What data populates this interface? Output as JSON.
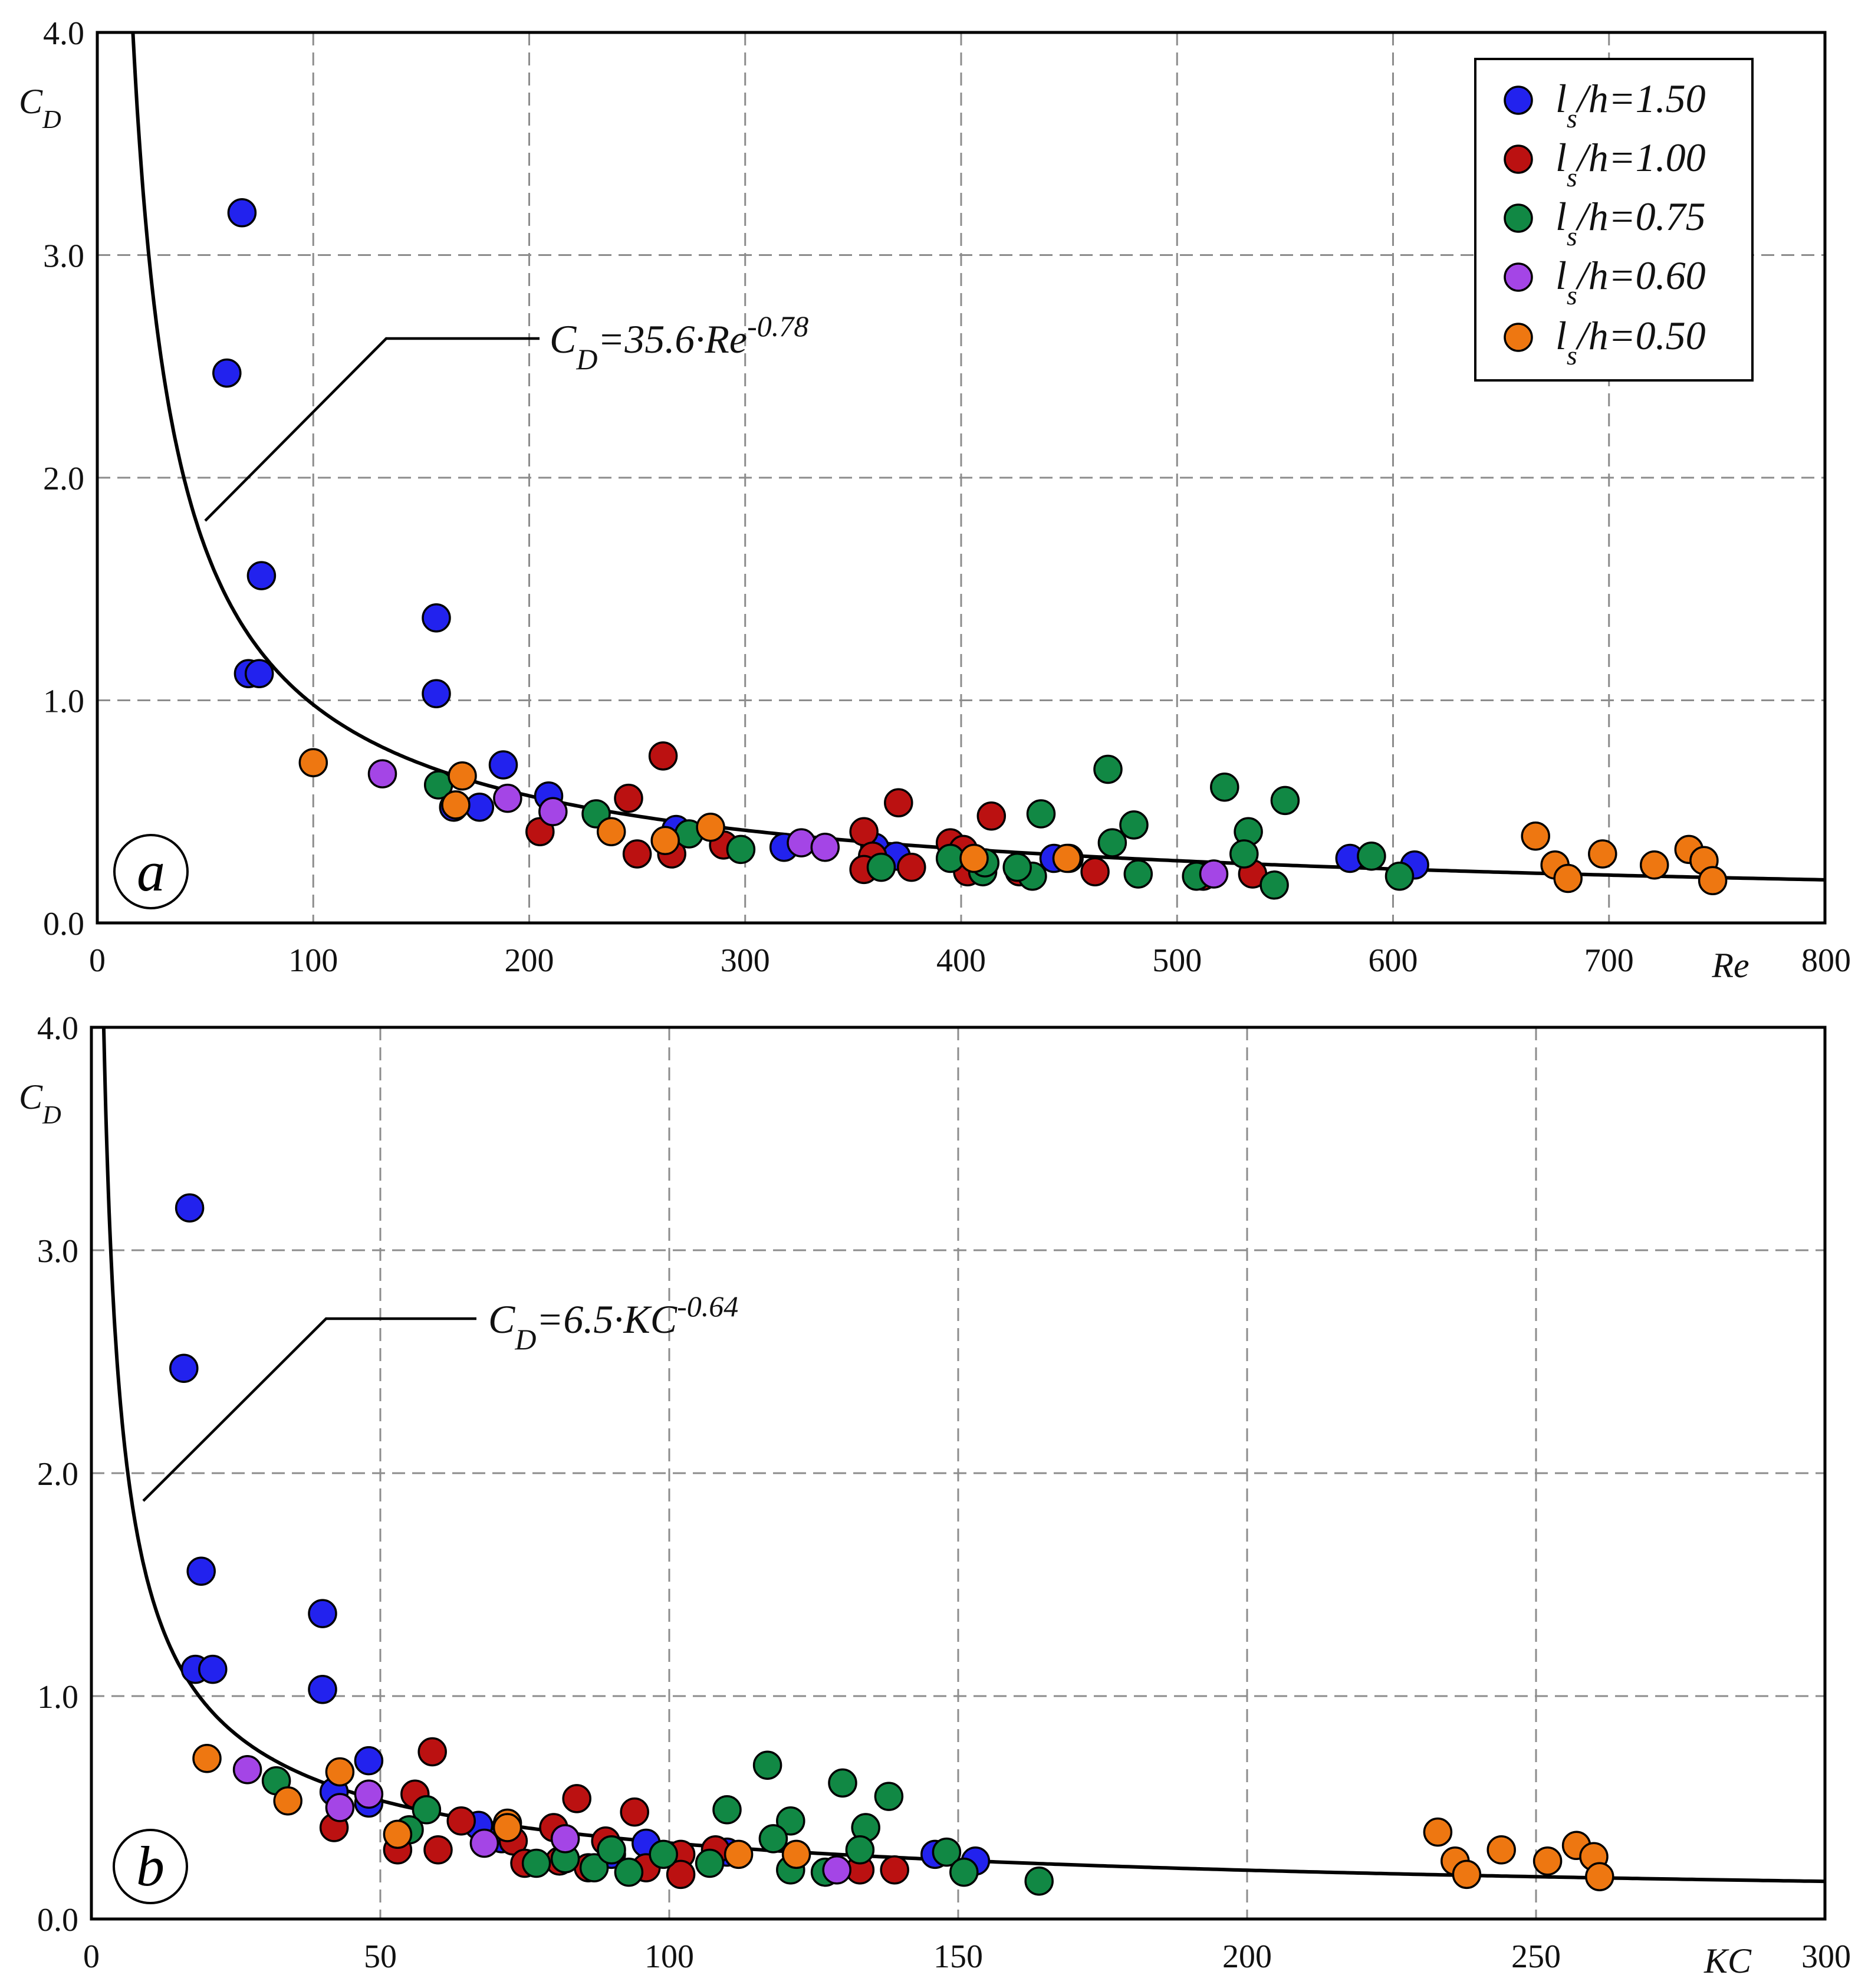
{
  "chart_data": [
    {
      "type": "scatter",
      "panel_label": "a",
      "xlabel": "Re",
      "ylabel": "C",
      "ylabel_sub": "D",
      "xlim": [
        0,
        800
      ],
      "ylim": [
        0,
        4
      ],
      "xticks": [
        "0",
        "100",
        "200",
        "300",
        "400",
        "500",
        "600",
        "700",
        "800"
      ],
      "yticks": [
        "0.0",
        "1.0",
        "2.0",
        "3.0",
        "4.0"
      ],
      "grid": true,
      "legend_position": "top-right",
      "fit": {
        "label_main": "C",
        "label_sub": "D",
        "label_rest": "=35.6·Re",
        "label_sup": "-0.78",
        "coef": 35.6,
        "exp": -0.78
      },
      "series": [
        {
          "name": "l/h=1.50",
          "leg_l": "l",
          "leg_s": "s",
          "leg_rest": "/h=1.50",
          "color": "#2222ee",
          "points": [
            [
              67,
              3.19
            ],
            [
              60,
              2.47
            ],
            [
              76,
              1.56
            ],
            [
              70,
              1.12
            ],
            [
              75,
              1.12
            ],
            [
              157,
              1.37
            ],
            [
              157,
              1.03
            ],
            [
              188,
              0.71
            ],
            [
              209,
              0.57
            ],
            [
              165,
              0.52
            ],
            [
              177,
              0.52
            ],
            [
              268,
              0.42
            ],
            [
              318,
              0.34
            ],
            [
              360,
              0.34
            ],
            [
              370,
              0.3
            ],
            [
              443,
              0.29
            ],
            [
              580,
              0.29
            ],
            [
              610,
              0.26
            ],
            [
              397,
              0.32
            ]
          ]
        },
        {
          "name": "l/h=1.00",
          "leg_l": "l",
          "leg_s": "s",
          "leg_rest": "/h=1.00",
          "color": "#bb1111",
          "points": [
            [
              262,
              0.75
            ],
            [
              371,
              0.54
            ],
            [
              414,
              0.48
            ],
            [
              246,
              0.56
            ],
            [
              205,
              0.41
            ],
            [
              355,
              0.41
            ],
            [
              250,
              0.31
            ],
            [
              266,
              0.31
            ],
            [
              290,
              0.35
            ],
            [
              359,
              0.3
            ],
            [
              395,
              0.36
            ],
            [
              401,
              0.33
            ],
            [
              403,
              0.23
            ],
            [
              355,
              0.24
            ],
            [
              377,
              0.25
            ],
            [
              427,
              0.23
            ],
            [
              462,
              0.23
            ],
            [
              512,
              0.21
            ],
            [
              535,
              0.22
            ],
            [
              450,
              0.29
            ]
          ]
        },
        {
          "name": "l/h=0.75",
          "leg_l": "l",
          "leg_s": "s",
          "leg_rest": "/h=0.75",
          "color": "#118844",
          "points": [
            [
              468,
              0.69
            ],
            [
              522,
              0.61
            ],
            [
              550,
              0.55
            ],
            [
              437,
              0.49
            ],
            [
              231,
              0.49
            ],
            [
              158,
              0.62
            ],
            [
              480,
              0.44
            ],
            [
              533,
              0.41
            ],
            [
              470,
              0.36
            ],
            [
              531,
              0.31
            ],
            [
              590,
              0.3
            ],
            [
              274,
              0.4
            ],
            [
              298,
              0.33
            ],
            [
              363,
              0.25
            ],
            [
              395,
              0.29
            ],
            [
              410,
              0.23
            ],
            [
              411,
              0.27
            ],
            [
              433,
              0.21
            ],
            [
              426,
              0.25
            ],
            [
              482,
              0.22
            ],
            [
              509,
              0.21
            ],
            [
              545,
              0.17
            ],
            [
              603,
              0.21
            ]
          ]
        },
        {
          "name": "l/h=0.60",
          "leg_l": "l",
          "leg_s": "s",
          "leg_rest": "/h=0.60",
          "color": "#a445e6",
          "points": [
            [
              132,
              0.67
            ],
            [
              190,
              0.56
            ],
            [
              211,
              0.5
            ],
            [
              326,
              0.36
            ],
            [
              337,
              0.34
            ],
            [
              517,
              0.22
            ]
          ]
        },
        {
          "name": "l/h=0.50",
          "leg_l": "l",
          "leg_s": "s",
          "leg_rest": "/h=0.50",
          "color": "#ee7711",
          "points": [
            [
              100,
              0.72
            ],
            [
              169,
              0.66
            ],
            [
              166,
              0.53
            ],
            [
              238,
              0.41
            ],
            [
              263,
              0.37
            ],
            [
              284,
              0.43
            ],
            [
              406,
              0.29
            ],
            [
              449,
              0.29
            ],
            [
              666,
              0.39
            ],
            [
              675,
              0.26
            ],
            [
              681,
              0.2
            ],
            [
              697,
              0.31
            ],
            [
              721,
              0.26
            ],
            [
              737,
              0.33
            ],
            [
              744,
              0.28
            ],
            [
              748,
              0.19
            ]
          ]
        }
      ]
    },
    {
      "type": "scatter",
      "panel_label": "b",
      "xlabel": "KC",
      "ylabel": "C",
      "ylabel_sub": "D",
      "xlim": [
        0,
        300
      ],
      "ylim": [
        0,
        4
      ],
      "xticks": [
        "0",
        "50",
        "100",
        "150",
        "200",
        "250",
        "300"
      ],
      "yticks": [
        "0.0",
        "1.0",
        "2.0",
        "3.0",
        "4.0"
      ],
      "grid": true,
      "fit": {
        "label_main": "C",
        "label_sub": "D",
        "label_rest": "=6.5·KC",
        "label_sup": "-0.64",
        "coef": 6.5,
        "exp": -0.64
      },
      "series": [
        {
          "name": "l/h=1.50",
          "color": "#2222ee",
          "points": [
            [
              17,
              3.19
            ],
            [
              16,
              2.47
            ],
            [
              19,
              1.56
            ],
            [
              18,
              1.12
            ],
            [
              21,
              1.12
            ],
            [
              40,
              1.37
            ],
            [
              40,
              1.03
            ],
            [
              48,
              0.71
            ],
            [
              42,
              0.57
            ],
            [
              48,
              0.52
            ],
            [
              67,
              0.42
            ],
            [
              96,
              0.34
            ],
            [
              90,
              0.29
            ],
            [
              146,
              0.29
            ],
            [
              153,
              0.26
            ],
            [
              71,
              0.36
            ],
            [
              110,
              0.3
            ]
          ]
        },
        {
          "name": "l/h=1.00",
          "color": "#bb1111",
          "points": [
            [
              59,
              0.75
            ],
            [
              84,
              0.54
            ],
            [
              94,
              0.48
            ],
            [
              56,
              0.56
            ],
            [
              42,
              0.41
            ],
            [
              80,
              0.41
            ],
            [
              53,
              0.31
            ],
            [
              60,
              0.31
            ],
            [
              64,
              0.44
            ],
            [
              73,
              0.35
            ],
            [
              75,
              0.25
            ],
            [
              81,
              0.26
            ],
            [
              86,
              0.23
            ],
            [
              89,
              0.35
            ],
            [
              96,
              0.23
            ],
            [
              102,
              0.29
            ],
            [
              102,
              0.2
            ],
            [
              108,
              0.31
            ],
            [
              133,
              0.22
            ],
            [
              139,
              0.22
            ]
          ]
        },
        {
          "name": "l/h=0.75",
          "color": "#118844",
          "points": [
            [
              117,
              0.69
            ],
            [
              130,
              0.61
            ],
            [
              138,
              0.55
            ],
            [
              110,
              0.49
            ],
            [
              58,
              0.49
            ],
            [
              32,
              0.62
            ],
            [
              121,
              0.44
            ],
            [
              134,
              0.41
            ],
            [
              118,
              0.36
            ],
            [
              133,
              0.31
            ],
            [
              148,
              0.3
            ],
            [
              55,
              0.4
            ],
            [
              77,
              0.25
            ],
            [
              82,
              0.27
            ],
            [
              87,
              0.23
            ],
            [
              90,
              0.31
            ],
            [
              93,
              0.21
            ],
            [
              99,
              0.29
            ],
            [
              107,
              0.25
            ],
            [
              121,
              0.22
            ],
            [
              127,
              0.21
            ],
            [
              151,
              0.21
            ],
            [
              164,
              0.17
            ]
          ]
        },
        {
          "name": "l/h=0.60",
          "color": "#a445e6",
          "points": [
            [
              27,
              0.67
            ],
            [
              48,
              0.56
            ],
            [
              43,
              0.5
            ],
            [
              68,
              0.34
            ],
            [
              82,
              0.36
            ],
            [
              129,
              0.22
            ]
          ]
        },
        {
          "name": "l/h=0.50",
          "color": "#ee7711",
          "points": [
            [
              20,
              0.72
            ],
            [
              43,
              0.66
            ],
            [
              34,
              0.53
            ],
            [
              53,
              0.38
            ],
            [
              72,
              0.43
            ],
            [
              72,
              0.41
            ],
            [
              112,
              0.29
            ],
            [
              122,
              0.29
            ],
            [
              233,
              0.39
            ],
            [
              236,
              0.26
            ],
            [
              238,
              0.2
            ],
            [
              244,
              0.31
            ],
            [
              252,
              0.26
            ],
            [
              257,
              0.33
            ],
            [
              260,
              0.28
            ],
            [
              261,
              0.19
            ]
          ]
        }
      ]
    }
  ]
}
